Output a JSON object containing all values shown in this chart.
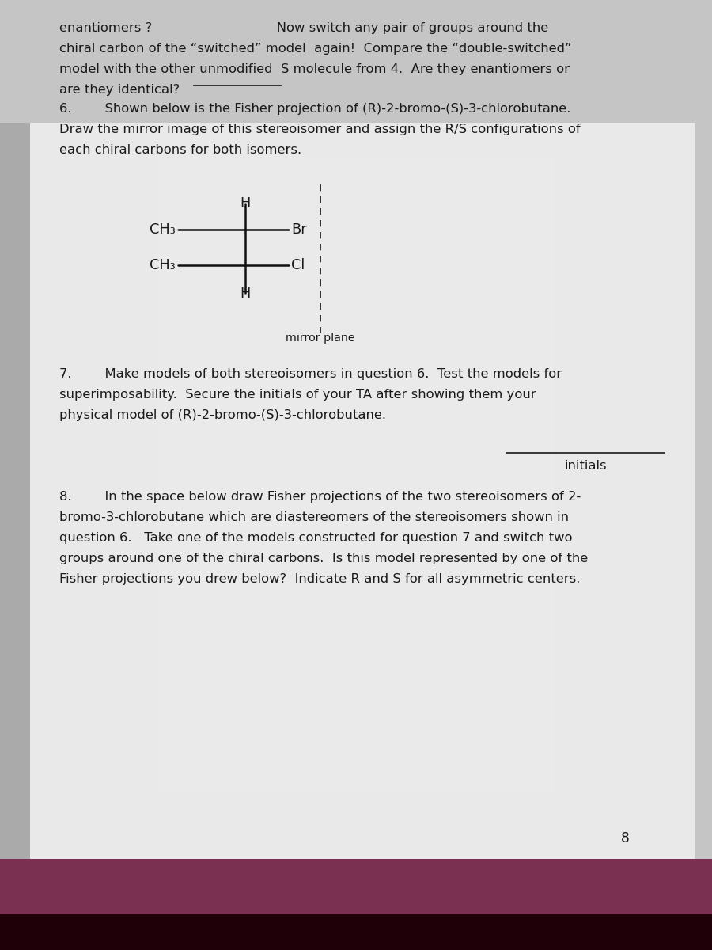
{
  "bg_color": "#c5c5c5",
  "page_color": "#e8e8e8",
  "text_color": "#1a1a1a",
  "line1": "enantiomers ?                              Now switch any pair of groups around the",
  "line2": "chiral carbon of the “switched” model  again!  Compare the “double-switched”",
  "line3": "model with the other unmodified  S molecule from 4.  Are they enantiomers or",
  "line4": "are they identical?",
  "q6_line1": "6.        Shown below is the Fisher projection of (R)-2-bromo-(S)-3-chlorobutane.",
  "q6_line2": "Draw the mirror image of this stereoisomer and assign the R/S configurations of",
  "q6_line3": "each chiral carbons for both isomers.",
  "mirror_label": "mirror plane",
  "q7_line1": "7.        Make models of both stereoisomers in question 6.  Test the models for",
  "q7_line2": "superimposability.  Secure the initials of your TA after showing them your",
  "q7_line3": "physical model of (R)-2-bromo-(S)-3-chlorobutane.",
  "initials_label": "initials",
  "q8_line1": "8.        In the space below draw Fisher projections of the two stereoisomers of 2-",
  "q8_line2": "bromo-3-chlorobutane which are diastereomers of the stereoisomers shown in",
  "q8_line3": "question 6.   Take one of the models constructed for question 7 and switch two",
  "q8_line4": "groups around one of the chiral carbons.  Is this model represented by one of the",
  "q8_line5": "Fisher projections you drew below?  Indicate R and S for all asymmetric centers.",
  "page_number": "8",
  "spine_color": "#7a3050",
  "spine_dark": "#2a0818",
  "font_size": 11.8
}
